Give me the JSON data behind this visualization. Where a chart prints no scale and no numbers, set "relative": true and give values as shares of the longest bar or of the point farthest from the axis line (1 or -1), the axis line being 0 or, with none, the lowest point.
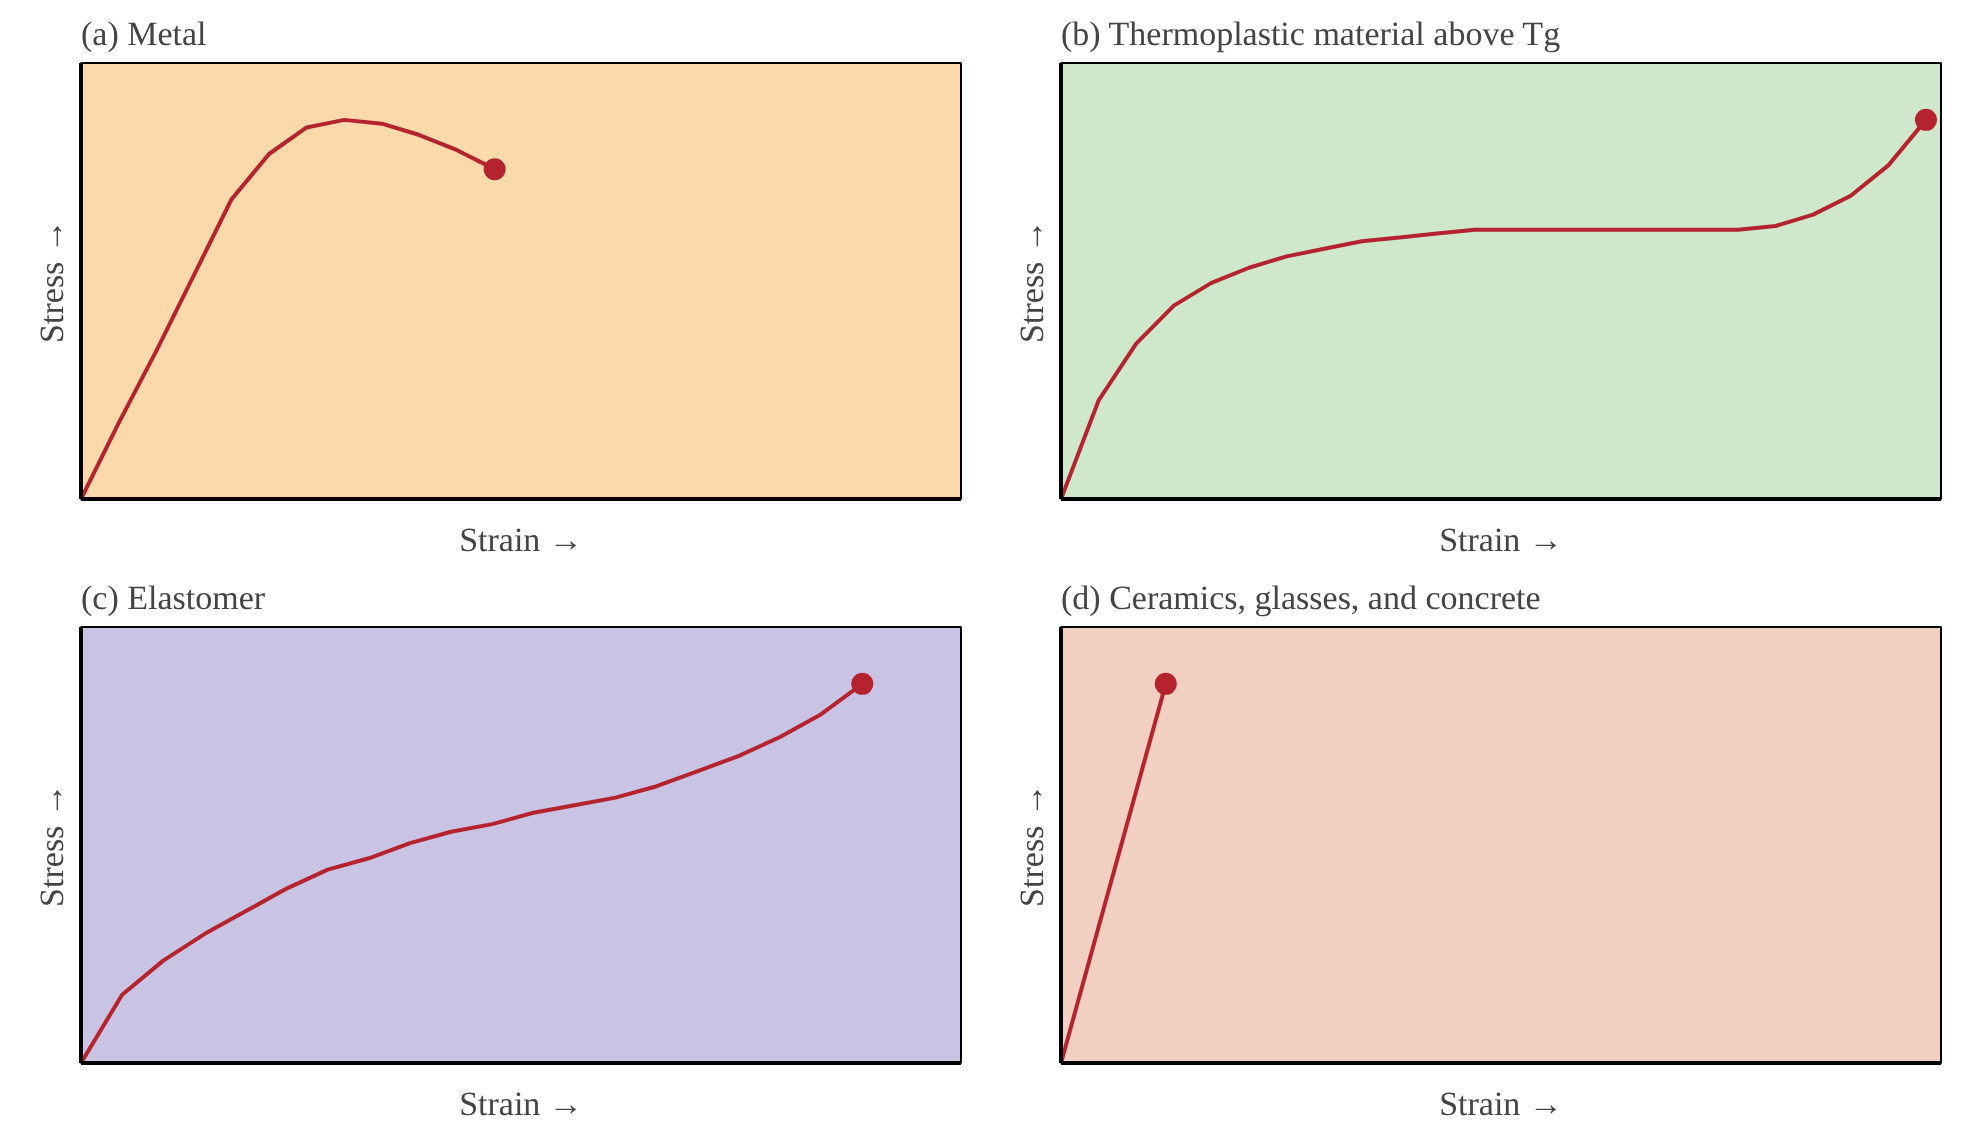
{
  "chart_data": [
    {
      "type": "line",
      "title": "(a) Metal",
      "xlabel": "Strain →",
      "ylabel": "Stress →",
      "relative": true,
      "grid": false,
      "categories": [
        null,
        null,
        null,
        null,
        null,
        null,
        null,
        null,
        null,
        null,
        null,
        null,
        null,
        null,
        null,
        null,
        null,
        null,
        null,
        null,
        null,
        null,
        null,
        null
      ],
      "series": [
        {
          "color": "#b5232f",
          "values": [
            0,
            0.2,
            0.39,
            0.59,
            0.79,
            0.91,
            0.98,
            1,
            0.99,
            0.96,
            0.92,
            0.87,
            null,
            null,
            null,
            null,
            null,
            null,
            null,
            null,
            null,
            null,
            null,
            null
          ]
        }
      ]
    },
    {
      "type": "line",
      "title": "(b) Thermoplastic material above Tg",
      "xlabel": "Strain →",
      "ylabel": "Stress →",
      "relative": true,
      "grid": false,
      "categories": [
        null,
        null,
        null,
        null,
        null,
        null,
        null,
        null,
        null,
        null,
        null,
        null,
        null,
        null,
        null,
        null,
        null,
        null,
        null,
        null,
        null,
        null,
        null,
        null
      ],
      "series": [
        {
          "color": "#b5232f",
          "values": [
            0,
            0.26,
            0.41,
            0.51,
            0.57,
            0.61,
            0.64,
            0.66,
            0.68,
            0.69,
            0.7,
            0.71,
            0.71,
            0.71,
            0.71,
            0.71,
            0.71,
            0.71,
            0.71,
            0.72,
            0.75,
            0.8,
            0.88,
            1
          ]
        }
      ]
    },
    {
      "type": "line",
      "title": "(c) Elastomer",
      "xlabel": "Strain →",
      "ylabel": "Stress →",
      "relative": true,
      "grid": false,
      "categories": [
        null,
        null,
        null,
        null,
        null,
        null,
        null,
        null,
        null,
        null,
        null,
        null,
        null,
        null,
        null,
        null,
        null,
        null,
        null,
        null,
        null,
        null
      ],
      "series": [
        {
          "color": "#b5232f",
          "values": [
            0,
            0.18,
            0.27,
            0.34,
            0.4,
            0.46,
            0.51,
            0.54,
            0.58,
            0.61,
            0.63,
            0.66,
            0.68,
            0.7,
            0.73,
            0.77,
            0.81,
            0.86,
            0.92,
            1,
            null,
            null
          ]
        }
      ]
    },
    {
      "type": "line",
      "title": "(d) Ceramics, glasses, and concrete",
      "xlabel": "Strain →",
      "ylabel": "Stress →",
      "relative": true,
      "grid": false,
      "categories": [
        null,
        null,
        null,
        null,
        null,
        null,
        null,
        null,
        null
      ],
      "series": [
        {
          "color": "#b5232f",
          "values": [
            0,
            1,
            null,
            null,
            null,
            null,
            null,
            null,
            null
          ]
        }
      ]
    }
  ]
}
